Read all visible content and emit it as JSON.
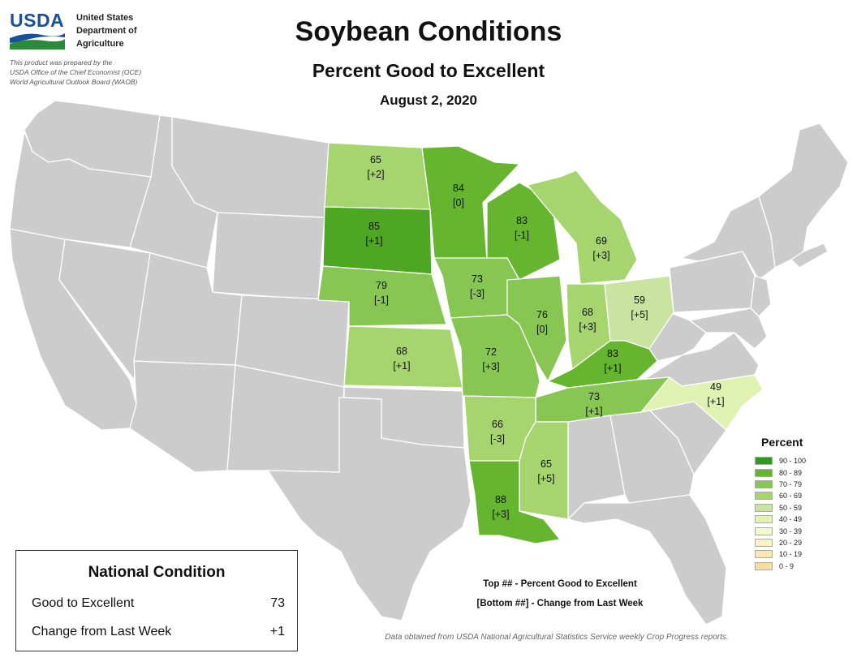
{
  "header": {
    "logo_text": "USDA",
    "agency_lines": [
      "United States",
      "Department of",
      "Agriculture"
    ],
    "prepared_lines": [
      "This product was prepared by the",
      "USDA Office of the Chief Economist (OCE)",
      "World Agricultural Outlook Board (WAOB)"
    ]
  },
  "title": "Soybean Conditions",
  "subtitle": "Percent Good to Excellent",
  "date": "August 2, 2020",
  "states": [
    {
      "id": "ND",
      "top": "65",
      "bottom": "[+2]",
      "color": "#a6d46e"
    },
    {
      "id": "MN",
      "top": "84",
      "bottom": "[0]",
      "color": "#66b52e"
    },
    {
      "id": "SD",
      "top": "85",
      "bottom": "[+1]",
      "color": "#4ea722"
    },
    {
      "id": "WI",
      "top": "83",
      "bottom": "[-1]",
      "color": "#66b52e"
    },
    {
      "id": "MI",
      "top": "69",
      "bottom": "[+3]",
      "color": "#a6d46e"
    },
    {
      "id": "NE",
      "top": "79",
      "bottom": "[-1]",
      "color": "#88c653"
    },
    {
      "id": "IA",
      "top": "73",
      "bottom": "[-3]",
      "color": "#88c653"
    },
    {
      "id": "IL",
      "top": "76",
      "bottom": "[0]",
      "color": "#88c653"
    },
    {
      "id": "IN",
      "top": "68",
      "bottom": "[+3]",
      "color": "#a6d46e"
    },
    {
      "id": "OH",
      "top": "59",
      "bottom": "[+5]",
      "color": "#c8e4a0"
    },
    {
      "id": "KS",
      "top": "68",
      "bottom": "[+1]",
      "color": "#a6d46e"
    },
    {
      "id": "MO",
      "top": "72",
      "bottom": "[+3]",
      "color": "#88c653"
    },
    {
      "id": "KY",
      "top": "83",
      "bottom": "[+1]",
      "color": "#66b52e"
    },
    {
      "id": "TN",
      "top": "73",
      "bottom": "[+1]",
      "color": "#88c653"
    },
    {
      "id": "NC",
      "top": "49",
      "bottom": "[+1]",
      "color": "#e0f2b2"
    },
    {
      "id": "AR",
      "top": "66",
      "bottom": "[-3]",
      "color": "#a6d46e"
    },
    {
      "id": "MS",
      "top": "65",
      "bottom": "[+5]",
      "color": "#a6d46e"
    },
    {
      "id": "LA",
      "top": "88",
      "bottom": "[+3]",
      "color": "#66b52e"
    }
  ],
  "map_colors": {
    "no_data": "#cccccc",
    "border": "#ffffff"
  },
  "legend": {
    "title": "Percent",
    "items": [
      {
        "label": "90 - 100",
        "color": "#2f9a1c"
      },
      {
        "label": "80 - 89",
        "color": "#66b52e"
      },
      {
        "label": "70 - 79",
        "color": "#88c653"
      },
      {
        "label": "60 - 69",
        "color": "#a6d46e"
      },
      {
        "label": "50 - 59",
        "color": "#c8e4a0"
      },
      {
        "label": "40 - 49",
        "color": "#e0f2b2"
      },
      {
        "label": "30 - 39",
        "color": "#f4f8cc"
      },
      {
        "label": "20 - 29",
        "color": "#fbf3c6"
      },
      {
        "label": "10 - 19",
        "color": "#f9e7b0"
      },
      {
        "label": "0 - 9",
        "color": "#f6dda0"
      }
    ]
  },
  "national": {
    "title": "National Condition",
    "rows": [
      {
        "label": "Good to Excellent",
        "value": "73"
      },
      {
        "label": "Change from Last Week",
        "value": "+1"
      }
    ]
  },
  "key": {
    "line1": "Top ## - Percent Good to Excellent",
    "line2": "[Bottom ##] - Change from Last Week"
  },
  "source": "Data obtained from USDA National Agricultural Statistics Service weekly Crop Progress reports."
}
